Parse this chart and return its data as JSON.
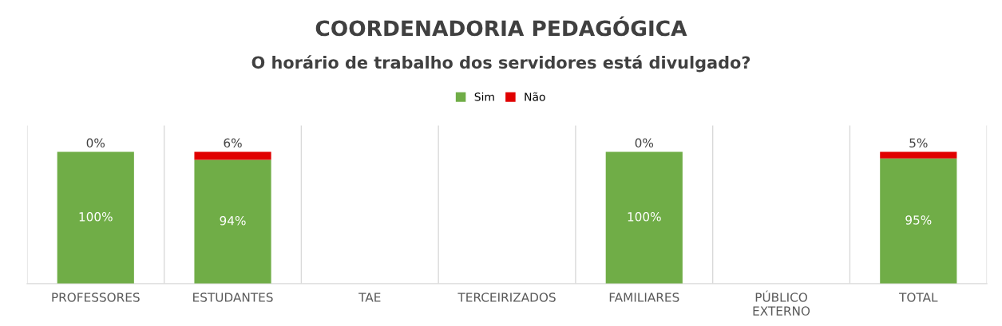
{
  "chart_data": {
    "type": "bar",
    "title": "COORDENADORIA PEDAGÓGICA",
    "subtitle": "O horário de trabalho dos servidores está divulgado?",
    "categories": [
      "PROFESSORES",
      "ESTUDANTES",
      "TAE",
      "TERCEIRIZADOS",
      "FAMILIARES",
      "PÚBLICO\nEXTERNO",
      "TOTAL"
    ],
    "stacked": true,
    "legend": "top",
    "grid": "x",
    "series": [
      {
        "name": "Sim",
        "color": "#70ad47",
        "values": [
          100,
          94,
          null,
          null,
          100,
          null,
          95
        ],
        "value_labels": [
          "100%",
          "94%",
          null,
          null,
          "100%",
          null,
          "95%"
        ]
      },
      {
        "name": "Não",
        "color": "#e00000",
        "values": [
          0,
          6,
          null,
          null,
          0,
          null,
          5
        ],
        "value_labels": [
          "0%",
          "6%",
          null,
          null,
          "0%",
          null,
          "5%"
        ]
      }
    ]
  }
}
